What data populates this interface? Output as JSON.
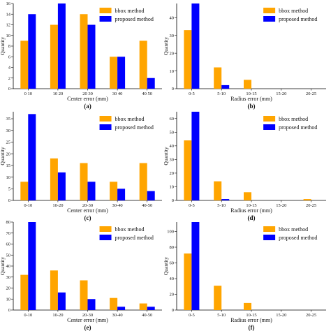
{
  "colors": {
    "bbox": "#FFA500",
    "proposed": "#0000FF"
  },
  "chart_data": [
    {
      "type": "bar",
      "panel_label": "(a)",
      "categories": [
        "0 10",
        "10 20",
        "20 30",
        "30 40",
        "40 50"
      ],
      "xlabel": "Center error (mm)",
      "ylabel": "Quantity",
      "ylim": [
        0,
        16
      ],
      "yticks": [
        0,
        2,
        4,
        6,
        8,
        10,
        12,
        14,
        16
      ],
      "series": [
        {
          "name": "bbox method",
          "values": [
            9,
            12,
            14,
            6,
            9
          ]
        },
        {
          "name": "proposed method",
          "values": [
            14,
            16,
            12,
            6,
            2
          ]
        }
      ],
      "legend": "top-right",
      "grid": false
    },
    {
      "type": "bar",
      "panel_label": "(b)",
      "categories": [
        "0-5",
        "5-10",
        "10-15",
        "15-20",
        "20-25"
      ],
      "xlabel": "Radius error (mm)",
      "ylabel": "Quantity",
      "ylim": [
        0,
        48
      ],
      "yticks": [
        0,
        10,
        20,
        30,
        40
      ],
      "series": [
        {
          "name": "bbox method",
          "values": [
            33,
            12,
            5,
            0,
            0
          ]
        },
        {
          "name": "proposed method",
          "values": [
            48,
            2,
            0,
            0,
            0
          ]
        }
      ],
      "legend": "top-right",
      "grid": false
    },
    {
      "type": "bar",
      "panel_label": "(c)",
      "categories": [
        "0-10",
        "10-20",
        "20-30",
        "30-40",
        "40-50"
      ],
      "xlabel": "Center error (mm)",
      "ylabel": "Quantity",
      "ylim": [
        0,
        38
      ],
      "yticks": [
        0,
        5,
        10,
        15,
        20,
        25,
        30,
        35
      ],
      "series": [
        {
          "name": "bbox method",
          "values": [
            8,
            18,
            16,
            8,
            16
          ]
        },
        {
          "name": "proposed method",
          "values": [
            37,
            12,
            8,
            5,
            4
          ]
        }
      ],
      "legend": "top-right",
      "grid": false
    },
    {
      "type": "bar",
      "panel_label": "(d)",
      "categories": [
        "0-5",
        "5-10",
        "10-15",
        "15-20",
        "20-25"
      ],
      "xlabel": "Radius error (mm)",
      "ylabel": "Quantity",
      "ylim": [
        0,
        65
      ],
      "yticks": [
        0,
        10,
        20,
        30,
        40,
        50,
        60
      ],
      "series": [
        {
          "name": "bbox method",
          "values": [
            44,
            14,
            6,
            0,
            1
          ]
        },
        {
          "name": "proposed method",
          "values": [
            65,
            1,
            0,
            0,
            0
          ]
        }
      ],
      "legend": "top-right",
      "grid": false
    },
    {
      "type": "bar",
      "panel_label": "(e)",
      "categories": [
        "0-10",
        "10-20",
        "20-30",
        "30-40",
        "40-50"
      ],
      "xlabel": "Center error (mm)",
      "ylabel": "Quantity",
      "ylim": [
        0,
        80
      ],
      "yticks": [
        0,
        10,
        20,
        30,
        40,
        50,
        60,
        70,
        80
      ],
      "series": [
        {
          "name": "bbox method",
          "values": [
            32,
            36,
            27,
            11,
            6
          ]
        },
        {
          "name": "proposed method",
          "values": [
            80,
            16,
            10,
            3,
            3
          ]
        }
      ],
      "legend": "top-right",
      "grid": false
    },
    {
      "type": "bar",
      "panel_label": "(f)",
      "categories": [
        "0-5",
        "5-10",
        "10-15",
        "15-20",
        "20-25"
      ],
      "xlabel": "Radius error (mm)",
      "ylabel": "Quantity",
      "ylim": [
        0,
        112
      ],
      "yticks": [
        0,
        20,
        40,
        60,
        80,
        100
      ],
      "series": [
        {
          "name": "bbox method",
          "values": [
            72,
            31,
            9,
            0,
            0
          ]
        },
        {
          "name": "proposed method",
          "values": [
            112,
            0,
            0,
            0,
            0
          ]
        }
      ],
      "legend": "top-right",
      "grid": false
    }
  ]
}
